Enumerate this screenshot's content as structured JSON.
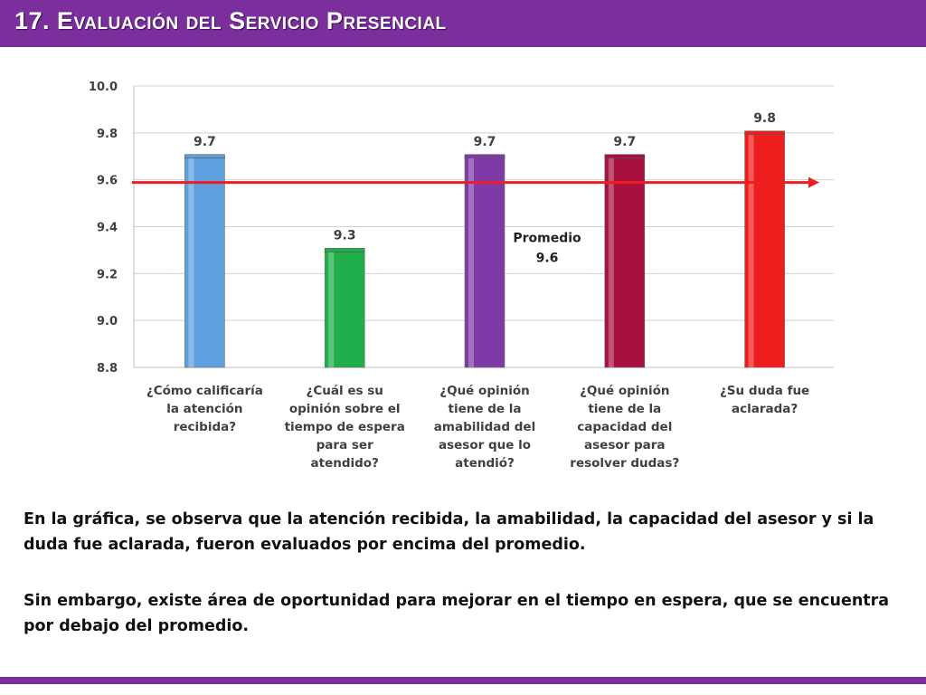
{
  "header": {
    "title": "17. Evaluación del Servicio Presencial"
  },
  "chart_data": {
    "type": "bar",
    "categories": [
      [
        "¿Cómo calificaría",
        "la atención",
        "recibida?"
      ],
      [
        "¿Cuál es su",
        "opinión sobre el",
        "tiempo de espera",
        "para ser",
        "atendido?"
      ],
      [
        "¿Qué opinión",
        "tiene de la",
        "amabilidad del",
        "asesor que lo",
        "atendió?"
      ],
      [
        "¿Qué opinión",
        "tiene de la",
        "capacidad del",
        "asesor para",
        "resolver dudas?"
      ],
      [
        "¿Su duda fue",
        "aclarada?"
      ]
    ],
    "values": [
      9.7,
      9.3,
      9.7,
      9.7,
      9.8
    ],
    "value_labels": [
      "9.7",
      "9.3",
      "9.7",
      "9.7",
      "9.8"
    ],
    "colors": [
      "#5ea0dd",
      "#1fae4a",
      "#7e3ba8",
      "#a8103f",
      "#f01d1d"
    ],
    "ylim": [
      8.8,
      10.0
    ],
    "yticks": [
      "8.8",
      "9.0",
      "9.2",
      "9.4",
      "9.6",
      "9.8",
      "10.0"
    ],
    "average": {
      "value": 9.6,
      "label": "Promedio",
      "value_label": "9.6",
      "color": "#ee1c24"
    },
    "grid": "horizontal"
  },
  "text": {
    "paragraph1": "En la gráfica, se observa que la atención recibida, la amabilidad, la capacidad del asesor y si la duda fue aclarada, fueron evaluados por encima del promedio.",
    "paragraph2": "Sin embargo, existe área de oportunidad para mejorar en el tiempo en espera, que se encuentra por debajo del promedio."
  }
}
